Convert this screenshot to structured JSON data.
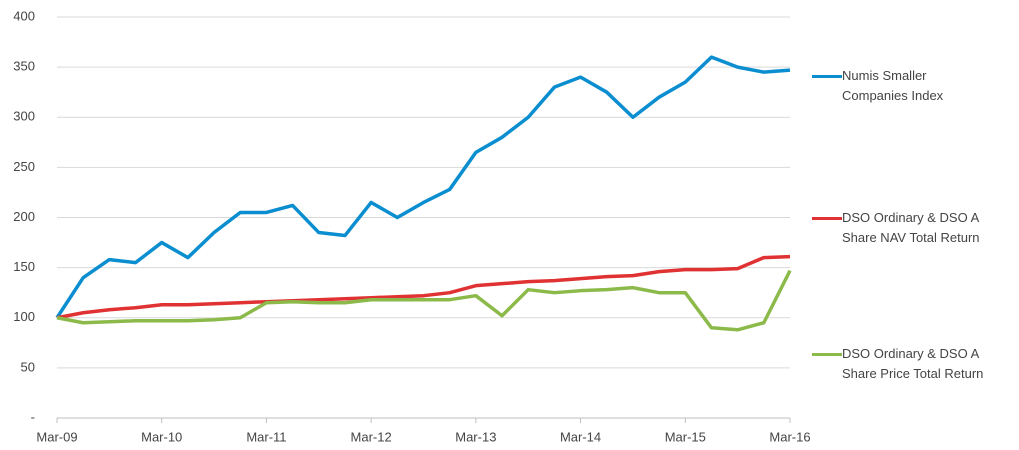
{
  "chart_data": {
    "type": "line",
    "x": [
      "2009-03",
      "2009-06",
      "2009-09",
      "2009-12",
      "2010-03",
      "2010-06",
      "2010-09",
      "2010-12",
      "2011-03",
      "2011-06",
      "2011-09",
      "2011-12",
      "2012-03",
      "2012-06",
      "2012-09",
      "2012-12",
      "2013-03",
      "2013-06",
      "2013-09",
      "2013-12",
      "2014-03",
      "2014-06",
      "2014-09",
      "2014-12",
      "2015-03",
      "2015-06",
      "2015-09",
      "2015-12",
      "2016-03"
    ],
    "series": [
      {
        "name": "Numis Smaller Companies Index",
        "color": "#0a8ed0",
        "values": [
          100,
          140,
          158,
          155,
          175,
          160,
          185,
          205,
          205,
          212,
          185,
          182,
          215,
          200,
          215,
          228,
          265,
          280,
          300,
          330,
          340,
          325,
          300,
          320,
          335,
          360,
          350,
          345,
          347
        ]
      },
      {
        "name": "DSO Ordinary & DSO A Share NAV Total Return",
        "color": "#e03232",
        "values": [
          100,
          105,
          108,
          110,
          113,
          113,
          114,
          115,
          116,
          117,
          118,
          119,
          120,
          121,
          122,
          125,
          132,
          134,
          136,
          137,
          139,
          141,
          142,
          146,
          148,
          148,
          149,
          160,
          161
        ]
      },
      {
        "name": "DSO Ordinary & DSO A Share Price Total Return",
        "color": "#8cba4a",
        "values": [
          100,
          95,
          96,
          97,
          97,
          97,
          98,
          100,
          115,
          116,
          115,
          115,
          118,
          118,
          118,
          118,
          122,
          102,
          128,
          125,
          127,
          128,
          130,
          125,
          125,
          90,
          88,
          95,
          147
        ]
      }
    ],
    "xlim": [
      "2009-03",
      "2016-03"
    ],
    "xticks": [
      {
        "value": "2009-03",
        "label": "Mar-09"
      },
      {
        "value": "2010-03",
        "label": "Mar-10"
      },
      {
        "value": "2011-03",
        "label": "Mar-11"
      },
      {
        "value": "2012-03",
        "label": "Mar-12"
      },
      {
        "value": "2013-03",
        "label": "Mar-13"
      },
      {
        "value": "2014-03",
        "label": "Mar-14"
      },
      {
        "value": "2015-03",
        "label": "Mar-15"
      },
      {
        "value": "2016-03",
        "label": "Mar-16"
      }
    ],
    "ylim": [
      0,
      400
    ],
    "yticks": [
      {
        "value": 0,
        "label": "-"
      },
      50,
      100,
      150,
      200,
      250,
      300,
      350,
      400
    ],
    "grid": true,
    "legend": "right"
  }
}
